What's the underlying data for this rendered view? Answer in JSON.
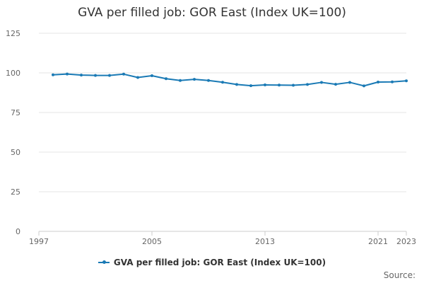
{
  "chart_data": {
    "type": "line",
    "title": "GVA per filled job: GOR East (Index UK=100)",
    "xlabel": "",
    "ylabel": "",
    "xlim": [
      1997,
      2023
    ],
    "ylim": [
      0,
      125
    ],
    "x_ticks": [
      "1997",
      "2005",
      "2013",
      "2021",
      "2023"
    ],
    "y_ticks": [
      "0",
      "25",
      "50",
      "75",
      "100",
      "125"
    ],
    "grid": true,
    "legend_position": "bottom",
    "series": [
      {
        "name": "GVA per filled job: GOR East (Index UK=100)",
        "color": "#1a7ab5",
        "x": [
          1998,
          1999,
          2000,
          2001,
          2002,
          2003,
          2004,
          2005,
          2006,
          2007,
          2008,
          2009,
          2010,
          2011,
          2012,
          2013,
          2014,
          2015,
          2016,
          2017,
          2018,
          2019,
          2020,
          2021,
          2022,
          2023
        ],
        "values": [
          98.8,
          99.3,
          98.6,
          98.4,
          98.4,
          99.2,
          97.1,
          98.2,
          96.3,
          95.2,
          95.9,
          95.2,
          94.1,
          92.7,
          91.9,
          92.4,
          92.3,
          92.2,
          92.7,
          94.0,
          92.8,
          94.0,
          91.8,
          94.2,
          94.3,
          95.0
        ]
      }
    ]
  },
  "legend": {
    "label": "GVA per filled job: GOR East (Index UK=100)"
  },
  "footer": {
    "source_label": "Source:"
  }
}
